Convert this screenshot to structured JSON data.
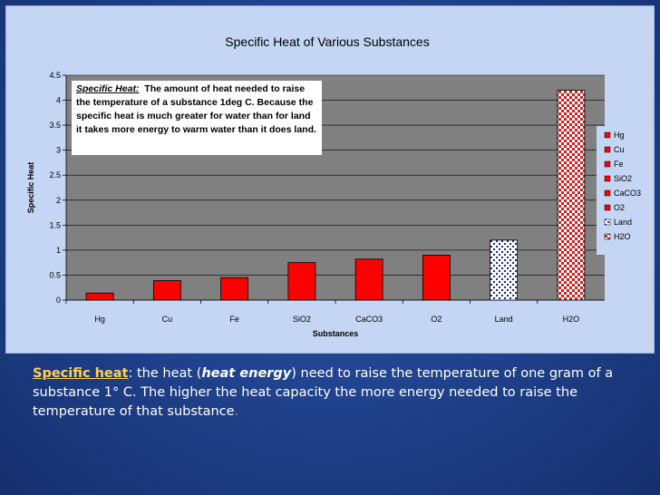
{
  "chart_data": {
    "type": "bar",
    "title": "Specific Heat of Various Substances",
    "xlabel": "Substances",
    "ylabel": "Specific Heat",
    "ylim": [
      0,
      4.5
    ],
    "yticks": [
      "0",
      "0.5",
      "1",
      "1.5",
      "2",
      "2.5",
      "3",
      "3.5",
      "4",
      "4.5"
    ],
    "categories": [
      "Hg",
      "Cu",
      "Fe",
      "SiO2",
      "CaCO3",
      "O2",
      "Land",
      "H2O"
    ],
    "values": [
      0.14,
      0.39,
      0.45,
      0.75,
      0.82,
      0.9,
      1.2,
      4.2
    ],
    "legend": [
      "Hg",
      "Cu",
      "Fe",
      "SiO2",
      "CaCO3",
      "O2",
      "Land",
      "H2O"
    ],
    "legend_position": "right",
    "grid": true,
    "colors": {
      "bar": "#ff0000",
      "land_pattern": "#1a2a8c",
      "h2o_pattern": "#cc2222",
      "plot_bg": "#808080",
      "chart_bg": "#c5d6f5"
    },
    "annotation": {
      "term": "Specific Heat:",
      "text": "The amount of heat needed to raise the temperature of a substance 1deg C. Because the specific heat is much greater for water than for land it takes more energy to warm water than it does land."
    }
  },
  "definition": {
    "term": "Specific heat",
    "part1": ": the heat (",
    "energy": "heat energy",
    "part2": ") need to raise the temperature of one gram of a substance 1° C.  The higher the heat capacity the more energy needed to raise the temperature of that substance",
    "end": "."
  }
}
